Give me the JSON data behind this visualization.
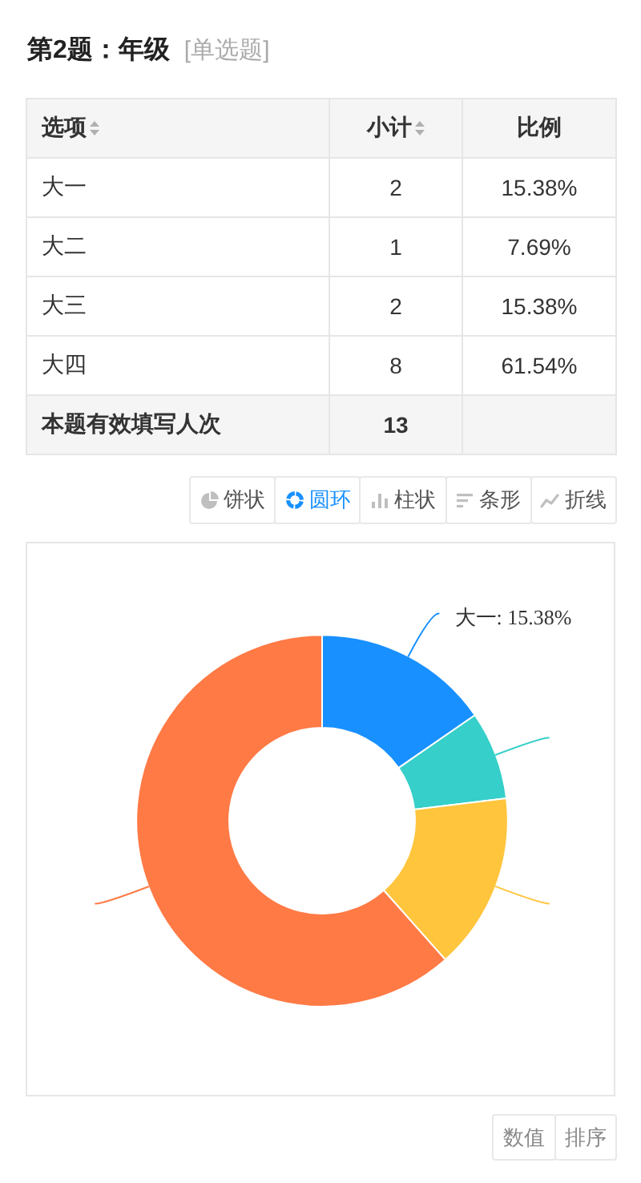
{
  "chart_data": [
    {
      "type": "other",
      "title": "第2题：年级",
      "subtitle": "[单选题]",
      "categories": [
        "大一",
        "大二",
        "大三",
        "大四"
      ],
      "values": [
        2,
        1,
        2,
        8
      ],
      "data_labels": true,
      "annotations": [
        "选项",
        "小计",
        "比例",
        "15.38%",
        "7.69%",
        "15.38%",
        "61.54%",
        "本题有效填写人次",
        "13"
      ]
    },
    {
      "type": "donut",
      "categories": [
        null,
        null,
        null,
        null
      ],
      "values": [
        15.38,
        7.69,
        15.38,
        61.54
      ],
      "colors": [
        "#1890ff",
        "#36cfc9",
        "#ffc53d",
        "#ff7a45"
      ],
      "value_labels": [
        "大一: 15.38%",
        null,
        null,
        null
      ],
      "annotations": [
        "饼状",
        "圆环",
        "柱状",
        "条形",
        "折线",
        "数值",
        "排序"
      ]
    }
  ]
}
